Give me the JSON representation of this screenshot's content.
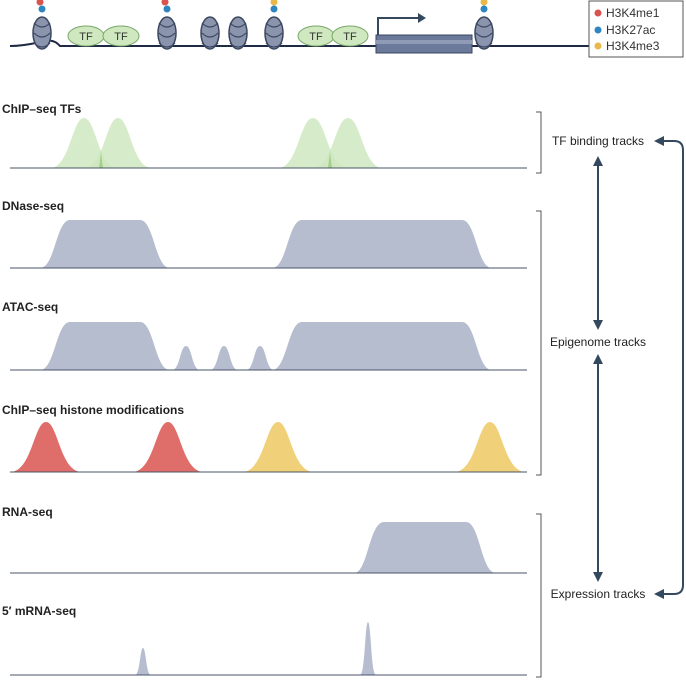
{
  "legend": {
    "items": [
      {
        "label": "H3K4me1",
        "color": "#d9534f"
      },
      {
        "label": "H3K27ac",
        "color": "#2e86c1"
      },
      {
        "label": "H3K4me3",
        "color": "#e8b84a"
      }
    ]
  },
  "genome": {
    "tf_label": "TF"
  },
  "tracks": [
    {
      "id": "chip-tf",
      "title": "ChIP–seq TFs"
    },
    {
      "id": "dnase",
      "title": "DNase-seq"
    },
    {
      "id": "atac",
      "title": "ATAC-seq"
    },
    {
      "id": "histone",
      "title": "ChIP–seq histone modifications"
    },
    {
      "id": "rna",
      "title": "RNA-seq"
    },
    {
      "id": "mrna5",
      "title": "5′ mRNA-seq"
    }
  ],
  "groups": {
    "tf_binding": "TF binding tracks",
    "epigenome": "Epigenome tracks",
    "expression": "Expression tracks"
  },
  "colors": {
    "tf_green": "#cfe8c0",
    "grey_peak": "#b6bdcf",
    "red_peak": "#d9534f",
    "yellow_peak": "#f1d07a",
    "arrow": "#34495e",
    "line": "#4a5568"
  }
}
